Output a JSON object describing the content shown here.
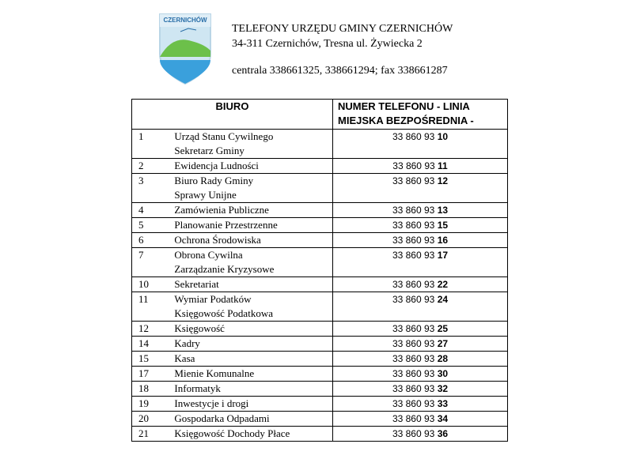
{
  "logo": {
    "text": "CZERNICHÓW"
  },
  "header": {
    "title": "TELEFONY URZĘDU GMINY CZERNICHÓW",
    "address": "34-311 Czernichów, Tresna ul. Żywiecka 2",
    "contact": "centrala 338661325, 338661294; fax 338661287"
  },
  "table": {
    "headers": [
      "BIURO",
      "NUMER TELEFONU - LINIA MIEJSKA BEZPOŚREDNIA -"
    ],
    "rows": [
      {
        "no": "1",
        "office": [
          "Urząd Stanu Cywilnego",
          "Sekretarz Gminy"
        ],
        "prefix": "33 860 93",
        "ext": "10"
      },
      {
        "no": "2",
        "office": [
          "Ewidencja Ludności"
        ],
        "prefix": "33 860 93",
        "ext": "11"
      },
      {
        "no": "3",
        "office": [
          "Biuro Rady Gminy",
          "Sprawy Unijne"
        ],
        "prefix": "33 860 93",
        "ext": "12"
      },
      {
        "no": "4",
        "office": [
          "Zamówienia Publiczne"
        ],
        "prefix": "33 860 93",
        "ext": "13"
      },
      {
        "no": "5",
        "office": [
          "Planowanie Przestrzenne"
        ],
        "prefix": "33 860 93",
        "ext": "15"
      },
      {
        "no": "6",
        "office": [
          "Ochrona Środowiska"
        ],
        "prefix": "33 860 93",
        "ext": "16"
      },
      {
        "no": "7",
        "office": [
          "Obrona Cywilna",
          "Zarządzanie Kryzysowe"
        ],
        "prefix": "33 860 93",
        "ext": "17"
      },
      {
        "no": "10",
        "office": [
          "Sekretariat"
        ],
        "prefix": "33 860 93",
        "ext": "22"
      },
      {
        "no": "11",
        "office": [
          "Wymiar Podatków",
          "Księgowość Podatkowa"
        ],
        "prefix": "33 860 93",
        "ext": "24"
      },
      {
        "no": "12",
        "office": [
          "Księgowość"
        ],
        "prefix": "33 860 93",
        "ext": "25"
      },
      {
        "no": "14",
        "office": [
          "Kadry"
        ],
        "prefix": "33 860 93",
        "ext": "27"
      },
      {
        "no": "15",
        "office": [
          "Kasa"
        ],
        "prefix": "33 860 93",
        "ext": "28"
      },
      {
        "no": "17",
        "office": [
          "Mienie Komunalne"
        ],
        "prefix": "33 860 93",
        "ext": "30"
      },
      {
        "no": "18",
        "office": [
          "Informatyk"
        ],
        "prefix": "33 860 93",
        "ext": "32"
      },
      {
        "no": "19",
        "office": [
          "Inwestycje i drogi"
        ],
        "prefix": "33 860 93",
        "ext": "33"
      },
      {
        "no": "20",
        "office": [
          "Gospodarka Odpadami"
        ],
        "prefix": "33 860 93",
        "ext": "34"
      },
      {
        "no": "21",
        "office": [
          "Księgowość Dochody Płace"
        ],
        "prefix": "33 860 93",
        "ext": "36"
      }
    ]
  }
}
